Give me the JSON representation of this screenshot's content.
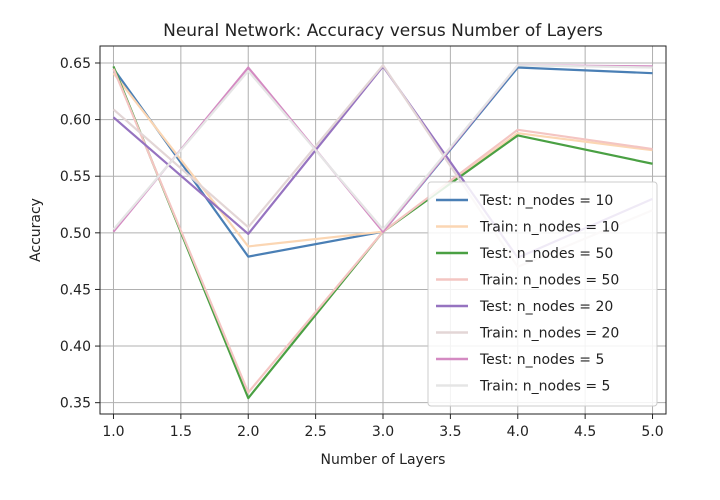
{
  "chart_data": {
    "type": "line",
    "title": "Neural Network: Accuracy versus Number of Layers",
    "xlabel": "Number of Layers",
    "ylabel": "Accuracy",
    "xlim": [
      0.9,
      5.1
    ],
    "ylim": [
      0.34,
      0.665
    ],
    "xticks": [
      "1.0",
      "1.5",
      "2.0",
      "2.5",
      "3.0",
      "3.5",
      "4.0",
      "4.5",
      "5.0"
    ],
    "yticks": [
      "0.35",
      "0.40",
      "0.45",
      "0.50",
      "0.55",
      "0.60",
      "0.65"
    ],
    "grid": true,
    "legend_placement": "lower-right",
    "x": [
      1,
      2,
      3,
      4,
      5
    ],
    "series": [
      {
        "name": "Test: n_nodes = 10",
        "color": "#4a7fb5",
        "opacity": 1.0,
        "values": [
          0.645,
          0.479,
          0.501,
          0.646,
          0.641
        ]
      },
      {
        "name": "Train: n_nodes = 10",
        "color": "#fbd6b3",
        "opacity": 1.0,
        "values": [
          0.641,
          0.488,
          0.501,
          0.588,
          0.573
        ]
      },
      {
        "name": "Test: n_nodes = 50",
        "color": "#4aa043",
        "opacity": 1.0,
        "values": [
          0.647,
          0.354,
          0.501,
          0.586,
          0.561
        ]
      },
      {
        "name": "Train: n_nodes = 50",
        "color": "#f4c5c2",
        "opacity": 1.0,
        "values": [
          0.645,
          0.359,
          0.501,
          0.591,
          0.574
        ]
      },
      {
        "name": "Test: n_nodes = 20",
        "color": "#9673c0",
        "opacity": 1.0,
        "values": [
          0.602,
          0.499,
          0.647,
          0.478,
          0.53
        ]
      },
      {
        "name": "Train: n_nodes = 20",
        "color": "#e3d6d6",
        "opacity": 1.0,
        "values": [
          0.609,
          0.505,
          0.648,
          0.47,
          0.52
        ]
      },
      {
        "name": "Test: n_nodes = 5",
        "color": "#d48ac2",
        "opacity": 1.0,
        "values": [
          0.501,
          0.646,
          0.501,
          0.648,
          0.647
        ]
      },
      {
        "name": "Train: n_nodes = 5",
        "color": "#e5e5e5",
        "opacity": 1.0,
        "values": [
          0.503,
          0.643,
          0.503,
          0.648,
          0.646
        ]
      }
    ]
  }
}
